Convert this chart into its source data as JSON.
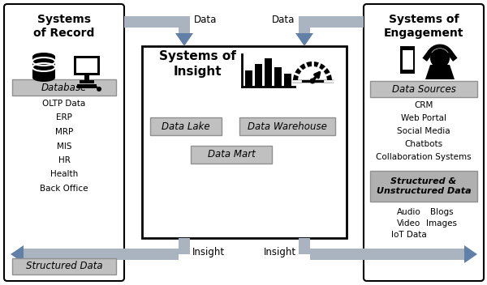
{
  "bg_color": "#ffffff",
  "left_title": "Systems\nof Record",
  "center_title": "Systems of\nInsight",
  "right_title": "Systems of\nEngagement",
  "left_label1": "Database",
  "left_list": [
    "OLTP Data",
    "ERP",
    "MRP",
    "MIS",
    "HR",
    "Health",
    "Back Office"
  ],
  "left_label2": "Structured Data",
  "center_sublabels": [
    "Data Lake",
    "Data Warehouse",
    "Data Mart"
  ],
  "right_label1": "Data Sources",
  "right_list": [
    "CRM",
    "Web Portal",
    "Social Media",
    "Chatbots",
    "Collaboration Systems"
  ],
  "right_label2": "Structured &\nUnstructured Data",
  "right_list2_col1": [
    "Audio",
    "Video",
    "IoT Data"
  ],
  "right_list2_col2": [
    "Blogs",
    "Images",
    ""
  ],
  "data_label": "Data",
  "insight_label": "Insight",
  "arrow_gray": "#aab4c0",
  "arrow_blue": "#6080a8",
  "gray_box": "#c0c0c0",
  "gray_box2": "#b0b0b0"
}
